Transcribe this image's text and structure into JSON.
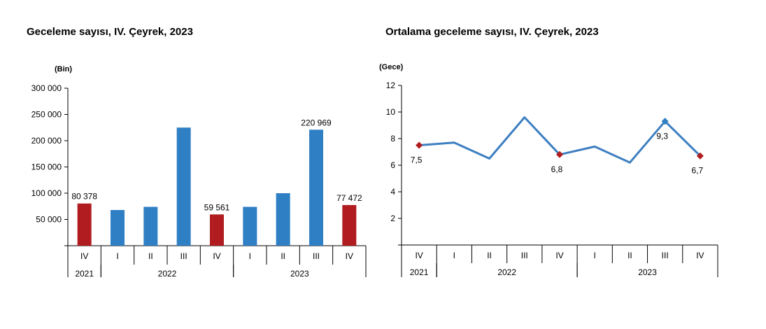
{
  "chart_data": [
    {
      "type": "bar",
      "title": "Geceleme sayısı, IV. Çeyrek, 2023",
      "unit": "(Bin)",
      "ylim": [
        0,
        300000
      ],
      "yticks": [
        {
          "value": 50000,
          "label": "50 000"
        },
        {
          "value": 100000,
          "label": "100 000"
        },
        {
          "value": 150000,
          "label": "150 000"
        },
        {
          "value": 200000,
          "label": "200 000"
        },
        {
          "value": 250000,
          "label": "250 000"
        },
        {
          "value": 300000,
          "label": "300 000"
        }
      ],
      "categories": [
        "IV",
        "I",
        "II",
        "III",
        "IV",
        "I",
        "II",
        "III",
        "IV"
      ],
      "years": [
        {
          "label": "2021",
          "start": 0,
          "end": 1
        },
        {
          "label": "2022",
          "start": 1,
          "end": 5
        },
        {
          "label": "2023",
          "start": 5,
          "end": 9
        }
      ],
      "values": [
        80378,
        68000,
        74000,
        225000,
        59561,
        74000,
        100000,
        220969,
        77472
      ],
      "highlight": [
        true,
        false,
        false,
        false,
        true,
        false,
        false,
        false,
        true
      ],
      "data_labels": [
        "80 378",
        "",
        "",
        "",
        "59 561",
        "",
        "",
        "220 969",
        "77 472"
      ],
      "colors": {
        "normal": "#2f7fc4",
        "highlight": "#b01c1f"
      },
      "grid": false
    },
    {
      "type": "line",
      "title": "Ortalama geceleme sayısı, IV. Çeyrek, 2023",
      "unit": "(Gece)",
      "ylim": [
        0,
        12
      ],
      "yticks": [
        {
          "value": 2,
          "label": "2"
        },
        {
          "value": 4,
          "label": "4"
        },
        {
          "value": 6,
          "label": "6"
        },
        {
          "value": 8,
          "label": "8"
        },
        {
          "value": 10,
          "label": "10"
        },
        {
          "value": 12,
          "label": "12"
        }
      ],
      "categories": [
        "IV",
        "I",
        "II",
        "III",
        "IV",
        "I",
        "II",
        "III",
        "IV"
      ],
      "years": [
        {
          "label": "2021",
          "start": 0,
          "end": 1
        },
        {
          "label": "2022",
          "start": 1,
          "end": 5
        },
        {
          "label": "2023",
          "start": 5,
          "end": 9
        }
      ],
      "values": [
        7.5,
        7.7,
        6.5,
        9.6,
        6.8,
        7.4,
        6.2,
        9.3,
        6.7
      ],
      "markers": [
        {
          "index": 0,
          "shape": "diamond",
          "color": "#b01c1f",
          "label": "7,5",
          "label_pos": "below"
        },
        {
          "index": 4,
          "shape": "diamond",
          "color": "#b01c1f",
          "label": "6,8",
          "label_pos": "below"
        },
        {
          "index": 7,
          "shape": "diamond",
          "color": "#2f7fc4",
          "label": "9,3",
          "label_pos": "below"
        },
        {
          "index": 8,
          "shape": "diamond",
          "color": "#b01c1f",
          "label": "6,7",
          "label_pos": "below"
        }
      ],
      "colors": {
        "line": "#3d7fc1"
      },
      "grid": false
    }
  ]
}
